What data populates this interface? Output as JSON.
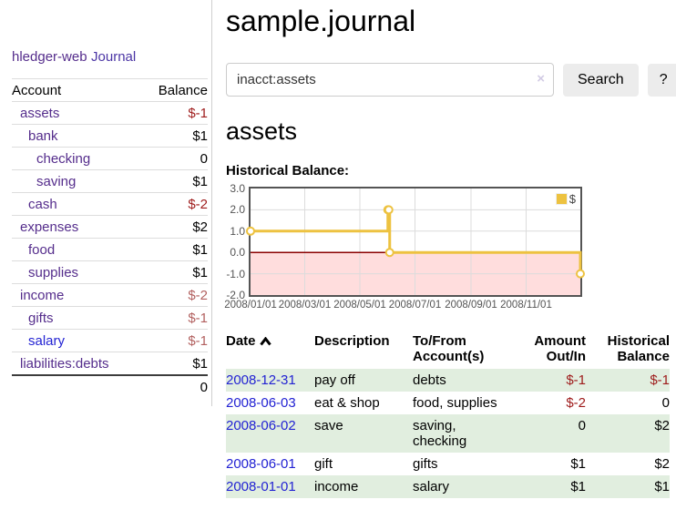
{
  "sidebar": {
    "app_title": "hledger-web",
    "journal_link": "Journal",
    "accounts_header": {
      "account": "Account",
      "balance": "Balance"
    },
    "accounts": [
      {
        "name": "assets",
        "balance": "$-1"
      },
      {
        "name": "bank",
        "balance": "$1"
      },
      {
        "name": "checking",
        "balance": "0"
      },
      {
        "name": "saving",
        "balance": "$1"
      },
      {
        "name": "cash",
        "balance": "$-2"
      },
      {
        "name": "expenses",
        "balance": "$2"
      },
      {
        "name": "food",
        "balance": "$1"
      },
      {
        "name": "supplies",
        "balance": "$1"
      },
      {
        "name": "income",
        "balance": "$-2"
      },
      {
        "name": "gifts",
        "balance": "$-1"
      },
      {
        "name": "salary",
        "balance": "$-1"
      },
      {
        "name": "liabilities:debts",
        "balance": "$1"
      }
    ],
    "total": "0"
  },
  "main": {
    "title": "sample.journal",
    "search": {
      "value": "inacct:assets",
      "clear_icon": "×",
      "button": "Search",
      "help_button": "?"
    },
    "section_title": "assets",
    "chart_label": "Historical Balance:"
  },
  "transactions": {
    "headers": {
      "date": "Date",
      "description": "Description",
      "tofrom": "To/From\nAccount(s)",
      "amount": "Amount\nOut/In",
      "balance": "Historical\nBalance"
    },
    "rows": [
      {
        "date": "2008-12-31",
        "description": "pay off",
        "accounts": "debts",
        "amount": "$-1",
        "balance": "$-1"
      },
      {
        "date": "2008-06-03",
        "description": "eat & shop",
        "accounts": "food, supplies",
        "amount": "$-2",
        "balance": "0"
      },
      {
        "date": "2008-06-02",
        "description": "save",
        "accounts": "saving,\nchecking",
        "amount": "0",
        "balance": "$2"
      },
      {
        "date": "2008-06-01",
        "description": "gift",
        "accounts": "gifts",
        "amount": "$1",
        "balance": "$2"
      },
      {
        "date": "2008-01-01",
        "description": "income",
        "accounts": "salary",
        "amount": "$1",
        "balance": "$1"
      }
    ]
  },
  "chart_data": {
    "type": "line",
    "step": true,
    "title": "Historical Balance",
    "series": [
      {
        "name": "$",
        "points": [
          [
            "2008-01-01",
            1
          ],
          [
            "2008-06-01",
            2
          ],
          [
            "2008-06-02",
            2
          ],
          [
            "2008-06-03",
            0
          ],
          [
            "2008-12-31",
            -1
          ]
        ]
      }
    ],
    "x_range": [
      "2008-01-01",
      "2008-12-31"
    ],
    "ylim": [
      -2,
      3
    ],
    "yticks": [
      3,
      2,
      1,
      0,
      -1,
      -2
    ],
    "xticks": [
      "2008/01/01",
      "2008/03/01",
      "2008/05/01",
      "2008/07/01",
      "2008/09/01",
      "2008/11/01"
    ],
    "legend": {
      "label": "$",
      "position": "top-right"
    },
    "colors": {
      "line": "#edc240",
      "marker_fill": "#ffffff",
      "below_zero_fill": "#ffdddd",
      "zero_line": "#8b0000",
      "grid": "#dcdcdc",
      "border": "#545454"
    }
  }
}
